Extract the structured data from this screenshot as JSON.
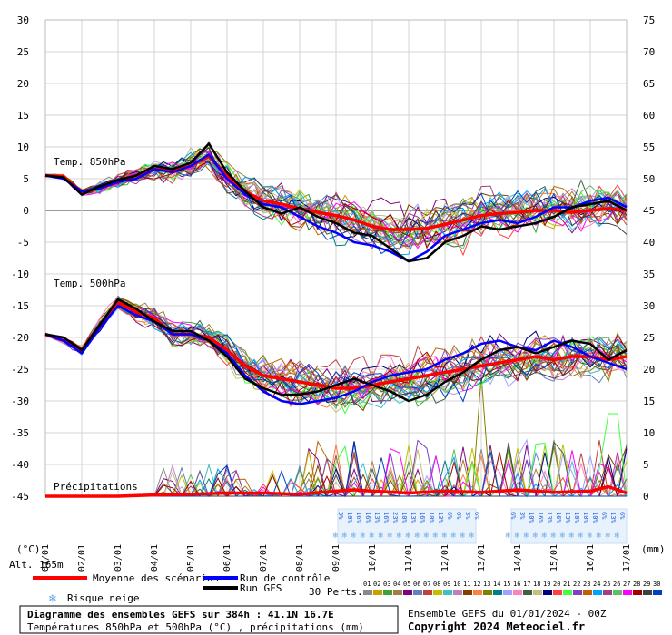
{
  "chart_data": {
    "type": "line",
    "title": "Diagramme des ensembles GEFS sur 384h : 41.1N 16.7E",
    "subtitle": "Températures 850hPa et 500hPa (°C) , précipitations (mm)",
    "run_label": "Ensemble GEFS du 01/01/2024 - 00Z",
    "copyright": "Copyright 2024 Meteociel.fr",
    "altitude_label": "Alt. 165m",
    "left_unit": "(°C)",
    "right_unit": "(mm)",
    "left_axis": {
      "ticks": [
        30,
        25,
        20,
        15,
        10,
        5,
        0,
        -5,
        -10,
        -15,
        -20,
        -25,
        -30,
        -35,
        -40,
        -45
      ],
      "range": [
        -45,
        30
      ]
    },
    "right_axis": {
      "ticks": [
        75,
        70,
        65,
        60,
        55,
        50,
        45,
        40,
        35,
        30,
        25,
        20,
        15,
        10,
        5,
        0
      ],
      "range": [
        0,
        75
      ]
    },
    "x_range": [
      1,
      17
    ],
    "date_labels": [
      "01/01",
      "02/01",
      "03/01",
      "04/01",
      "05/01",
      "06/01",
      "07/01",
      "08/01",
      "09/01",
      "10/01",
      "11/01",
      "12/01",
      "13/01",
      "14/01",
      "15/01",
      "16/01",
      "17/01"
    ],
    "section_labels": {
      "t850": "Temp. 850hPa",
      "t500": "Temp. 500hPa",
      "precip": "Précipitations"
    },
    "members_label": "30 Perts.",
    "member_ids": [
      "01",
      "02",
      "03",
      "04",
      "05",
      "06",
      "07",
      "08",
      "09",
      "10",
      "11",
      "12",
      "13",
      "14",
      "15",
      "16",
      "17",
      "18",
      "19",
      "20",
      "21",
      "22",
      "23",
      "24",
      "25",
      "26",
      "27",
      "28",
      "29",
      "30"
    ],
    "member_colors": [
      "#8a8a8a",
      "#c8a000",
      "#40a040",
      "#a08040",
      "#800080",
      "#6080c0",
      "#c04040",
      "#c0c000",
      "#40c0c0",
      "#c080c0",
      "#804000",
      "#ff8040",
      "#808000",
      "#008080",
      "#a0a0ff",
      "#ff80c0",
      "#406040",
      "#c0c080",
      "#000080",
      "#ff4040",
      "#40ff40",
      "#8040c0",
      "#c06000",
      "#00a0ff",
      "#a04080",
      "#60c060",
      "#ff00ff",
      "#a00000",
      "#404040",
      "#0040c0"
    ],
    "legend": [
      {
        "label": "Moyenne des scénarios",
        "color": "#ff0000"
      },
      {
        "label": "Run de contrôle",
        "color": "#0000ff"
      },
      {
        "label": "Run GFS",
        "color": "#000000"
      },
      {
        "label": "Risque neige",
        "color": "#6aa8e8"
      }
    ],
    "snow_risk": [
      {
        "x": 9.0,
        "pct": "3%"
      },
      {
        "x": 9.25,
        "pct": "10%"
      },
      {
        "x": 9.5,
        "pct": "16%"
      },
      {
        "x": 9.75,
        "pct": "16%"
      },
      {
        "x": 10.0,
        "pct": "13%"
      },
      {
        "x": 10.25,
        "pct": "16%"
      },
      {
        "x": 10.5,
        "pct": "23%"
      },
      {
        "x": 10.75,
        "pct": "10%"
      },
      {
        "x": 11.0,
        "pct": "13%"
      },
      {
        "x": 11.25,
        "pct": "16%"
      },
      {
        "x": 11.5,
        "pct": "10%"
      },
      {
        "x": 11.75,
        "pct": "13%"
      },
      {
        "x": 12.0,
        "pct": "6%"
      },
      {
        "x": 12.25,
        "pct": "6%"
      },
      {
        "x": 12.5,
        "pct": "3%"
      },
      {
        "x": 12.75,
        "pct": "6%"
      },
      {
        "x": 13.75,
        "pct": "6%"
      },
      {
        "x": 14.0,
        "pct": "3%"
      },
      {
        "x": 14.25,
        "pct": "10%"
      },
      {
        "x": 14.5,
        "pct": "16%"
      },
      {
        "x": 14.75,
        "pct": "13%"
      },
      {
        "x": 15.0,
        "pct": "16%"
      },
      {
        "x": 15.25,
        "pct": "13%"
      },
      {
        "x": 15.5,
        "pct": "10%"
      },
      {
        "x": 15.75,
        "pct": "10%"
      },
      {
        "x": 16.0,
        "pct": "10%"
      },
      {
        "x": 16.25,
        "pct": "6%"
      },
      {
        "x": 16.5,
        "pct": "13%"
      },
      {
        "x": 16.75,
        "pct": "6%"
      }
    ],
    "series": [
      {
        "name": "Moyenne des scénarios",
        "group": "t850",
        "color": "#ff0000",
        "x": [
          1,
          1.5,
          2,
          2.5,
          3,
          3.5,
          4,
          4.5,
          5,
          5.5,
          6,
          6.5,
          7,
          7.5,
          8,
          8.5,
          9,
          9.5,
          10,
          10.5,
          11,
          11.5,
          12,
          12.5,
          13,
          13.5,
          14,
          14.5,
          15,
          15.5,
          16,
          16.5,
          17
        ],
        "y": [
          5.5,
          5.3,
          2.8,
          3.5,
          4.5,
          5.5,
          6.5,
          6.2,
          7.0,
          8.5,
          5.5,
          3.0,
          1.5,
          1.0,
          0.3,
          -0.3,
          -0.8,
          -1.5,
          -2.5,
          -3.0,
          -3.0,
          -2.8,
          -2.2,
          -1.5,
          -0.8,
          -0.5,
          -0.3,
          0.0,
          0.0,
          -0.3,
          0.0,
          0.3,
          0.0
        ]
      },
      {
        "name": "Run de contrôle",
        "group": "t850",
        "color": "#0000ff",
        "x": [
          1,
          1.5,
          2,
          2.5,
          3,
          3.5,
          4,
          4.5,
          5,
          5.5,
          6,
          6.5,
          7,
          7.5,
          8,
          8.5,
          9,
          9.5,
          10,
          10.5,
          11,
          11.5,
          12,
          12.5,
          13,
          13.5,
          14,
          14.5,
          15,
          15.5,
          16,
          16.5,
          17
        ],
        "y": [
          5.5,
          5.0,
          3.0,
          3.5,
          4.5,
          5.0,
          6.5,
          6.0,
          7.0,
          8.8,
          5.0,
          2.5,
          1.0,
          0.5,
          -1.0,
          -2.5,
          -3.5,
          -5.0,
          -5.5,
          -6.5,
          -8.0,
          -6.5,
          -4.0,
          -3.0,
          -2.0,
          -1.5,
          -2.0,
          -1.0,
          0.5,
          0.5,
          1.5,
          2.0,
          0.5
        ]
      },
      {
        "name": "Run GFS",
        "group": "t850",
        "color": "#000000",
        "x": [
          1,
          1.5,
          2,
          2.5,
          3,
          3.5,
          4,
          4.5,
          5,
          5.5,
          6,
          6.5,
          7,
          7.5,
          8,
          8.5,
          9,
          9.5,
          10,
          10.5,
          11,
          11.5,
          12,
          12.5,
          13,
          13.5,
          14,
          14.5,
          15,
          15.5,
          16,
          16.5,
          17
        ],
        "y": [
          5.5,
          5.2,
          2.5,
          3.8,
          4.8,
          5.5,
          7.0,
          6.5,
          7.5,
          10.5,
          6.0,
          3.0,
          0.5,
          -0.5,
          0.5,
          -1.0,
          -2.0,
          -3.5,
          -4.0,
          -6.0,
          -8.0,
          -7.5,
          -5.0,
          -4.0,
          -2.5,
          -3.0,
          -2.5,
          -2.0,
          -1.0,
          0.5,
          1.0,
          1.5,
          0.0
        ]
      },
      {
        "name": "Moyenne des scénarios",
        "group": "t500",
        "color": "#ff0000",
        "x": [
          1,
          1.5,
          2,
          2.5,
          3,
          3.5,
          4,
          4.5,
          5,
          5.5,
          6,
          6.5,
          7,
          7.5,
          8,
          8.5,
          9,
          9.5,
          10,
          10.5,
          11,
          11.5,
          12,
          12.5,
          13,
          13.5,
          14,
          14.5,
          15,
          15.5,
          16,
          16.5,
          17
        ],
        "y": [
          -19.5,
          -20.5,
          -22.0,
          -18.0,
          -14.5,
          -16.0,
          -17.0,
          -19.5,
          -19.5,
          -20.0,
          -22.0,
          -24.5,
          -26.0,
          -26.5,
          -27.0,
          -27.5,
          -28.0,
          -28.0,
          -27.5,
          -27.0,
          -26.5,
          -26.0,
          -25.5,
          -25.0,
          -24.5,
          -24.0,
          -23.5,
          -23.0,
          -23.5,
          -23.0,
          -23.0,
          -23.5,
          -23.0
        ]
      },
      {
        "name": "Run de contrôle",
        "group": "t500",
        "color": "#0000ff",
        "x": [
          1,
          1.5,
          2,
          2.5,
          3,
          3.5,
          4,
          4.5,
          5,
          5.5,
          6,
          6.5,
          7,
          7.5,
          8,
          8.5,
          9,
          9.5,
          10,
          10.5,
          11,
          11.5,
          12,
          12.5,
          13,
          13.5,
          14,
          14.5,
          15,
          15.5,
          16,
          16.5,
          17
        ],
        "y": [
          -19.5,
          -20.5,
          -22.5,
          -18.5,
          -15.0,
          -16.5,
          -17.5,
          -19.5,
          -19.5,
          -20.5,
          -22.5,
          -26.0,
          -28.5,
          -30.0,
          -30.5,
          -30.0,
          -29.5,
          -28.5,
          -27.0,
          -26.0,
          -25.5,
          -25.0,
          -23.5,
          -22.5,
          -21.0,
          -20.5,
          -21.5,
          -22.0,
          -20.5,
          -21.5,
          -23.0,
          -24.0,
          -25.0
        ]
      },
      {
        "name": "Run GFS",
        "group": "t500",
        "color": "#000000",
        "x": [
          1,
          1.5,
          2,
          2.5,
          3,
          3.5,
          4,
          4.5,
          5,
          5.5,
          6,
          6.5,
          7,
          7.5,
          8,
          8.5,
          9,
          9.5,
          10,
          10.5,
          11,
          11.5,
          12,
          12.5,
          13,
          13.5,
          14,
          14.5,
          15,
          15.5,
          16,
          16.5,
          17
        ],
        "y": [
          -19.5,
          -20.0,
          -22.0,
          -18.0,
          -14.0,
          -15.5,
          -17.5,
          -19.0,
          -19.0,
          -20.5,
          -23.0,
          -26.5,
          -28.0,
          -29.0,
          -29.0,
          -28.5,
          -27.5,
          -26.5,
          -27.5,
          -28.5,
          -30.0,
          -29.0,
          -27.0,
          -25.5,
          -23.5,
          -22.0,
          -21.5,
          -22.5,
          -21.5,
          -20.5,
          -21.0,
          -23.5,
          -22.0
        ]
      },
      {
        "name": "Moyenne des scénarios",
        "group": "precip",
        "color": "#ff0000",
        "x": [
          1,
          2,
          3,
          4,
          5,
          6,
          7,
          8,
          9,
          9.5,
          10,
          11,
          12,
          13,
          14,
          15,
          16,
          16.5,
          17
        ],
        "y": [
          0,
          0,
          0,
          0.2,
          0.3,
          0.5,
          0.5,
          0.3,
          0.8,
          1.0,
          0.8,
          0.5,
          0.8,
          0.6,
          1.0,
          0.6,
          0.8,
          1.5,
          0.5
        ]
      }
    ]
  }
}
